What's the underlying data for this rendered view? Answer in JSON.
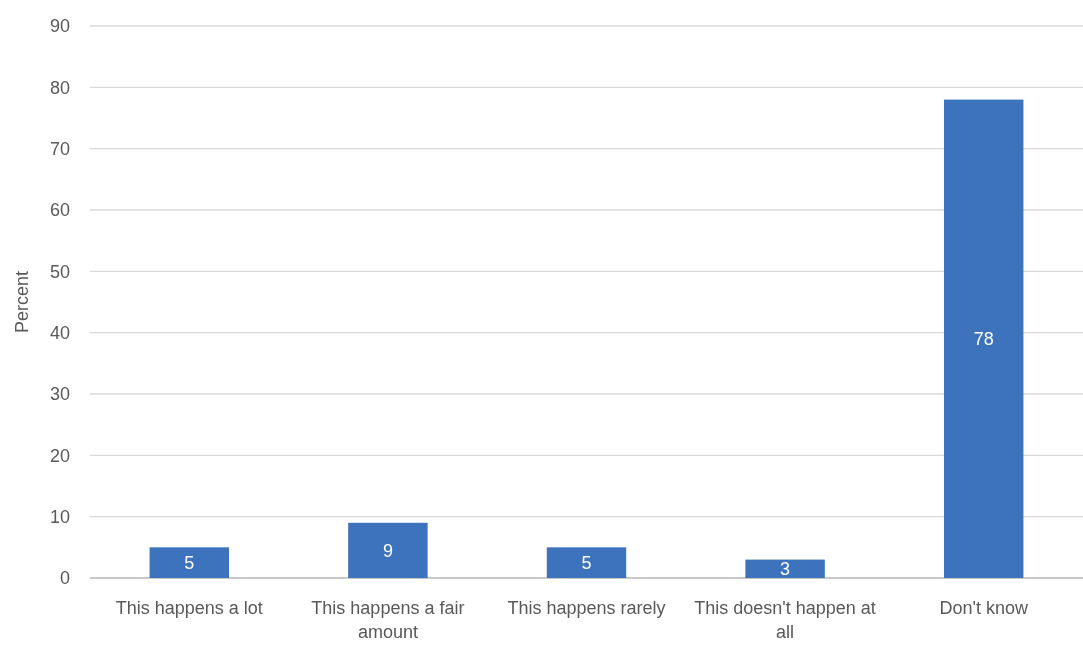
{
  "chart_data": {
    "type": "bar",
    "ylabel": "Percent",
    "categories": [
      "This happens a lot",
      "This happens a fair amount",
      "This happens rarely",
      "This doesn't happen at all",
      "Don't know"
    ],
    "values": [
      5,
      9,
      5,
      3,
      78
    ],
    "color": "#3d72bc",
    "ylim": [
      0,
      90
    ],
    "yticks": [
      0,
      10,
      20,
      30,
      40,
      50,
      60,
      70,
      80,
      90
    ],
    "grid": "y",
    "data_labels": true
  }
}
